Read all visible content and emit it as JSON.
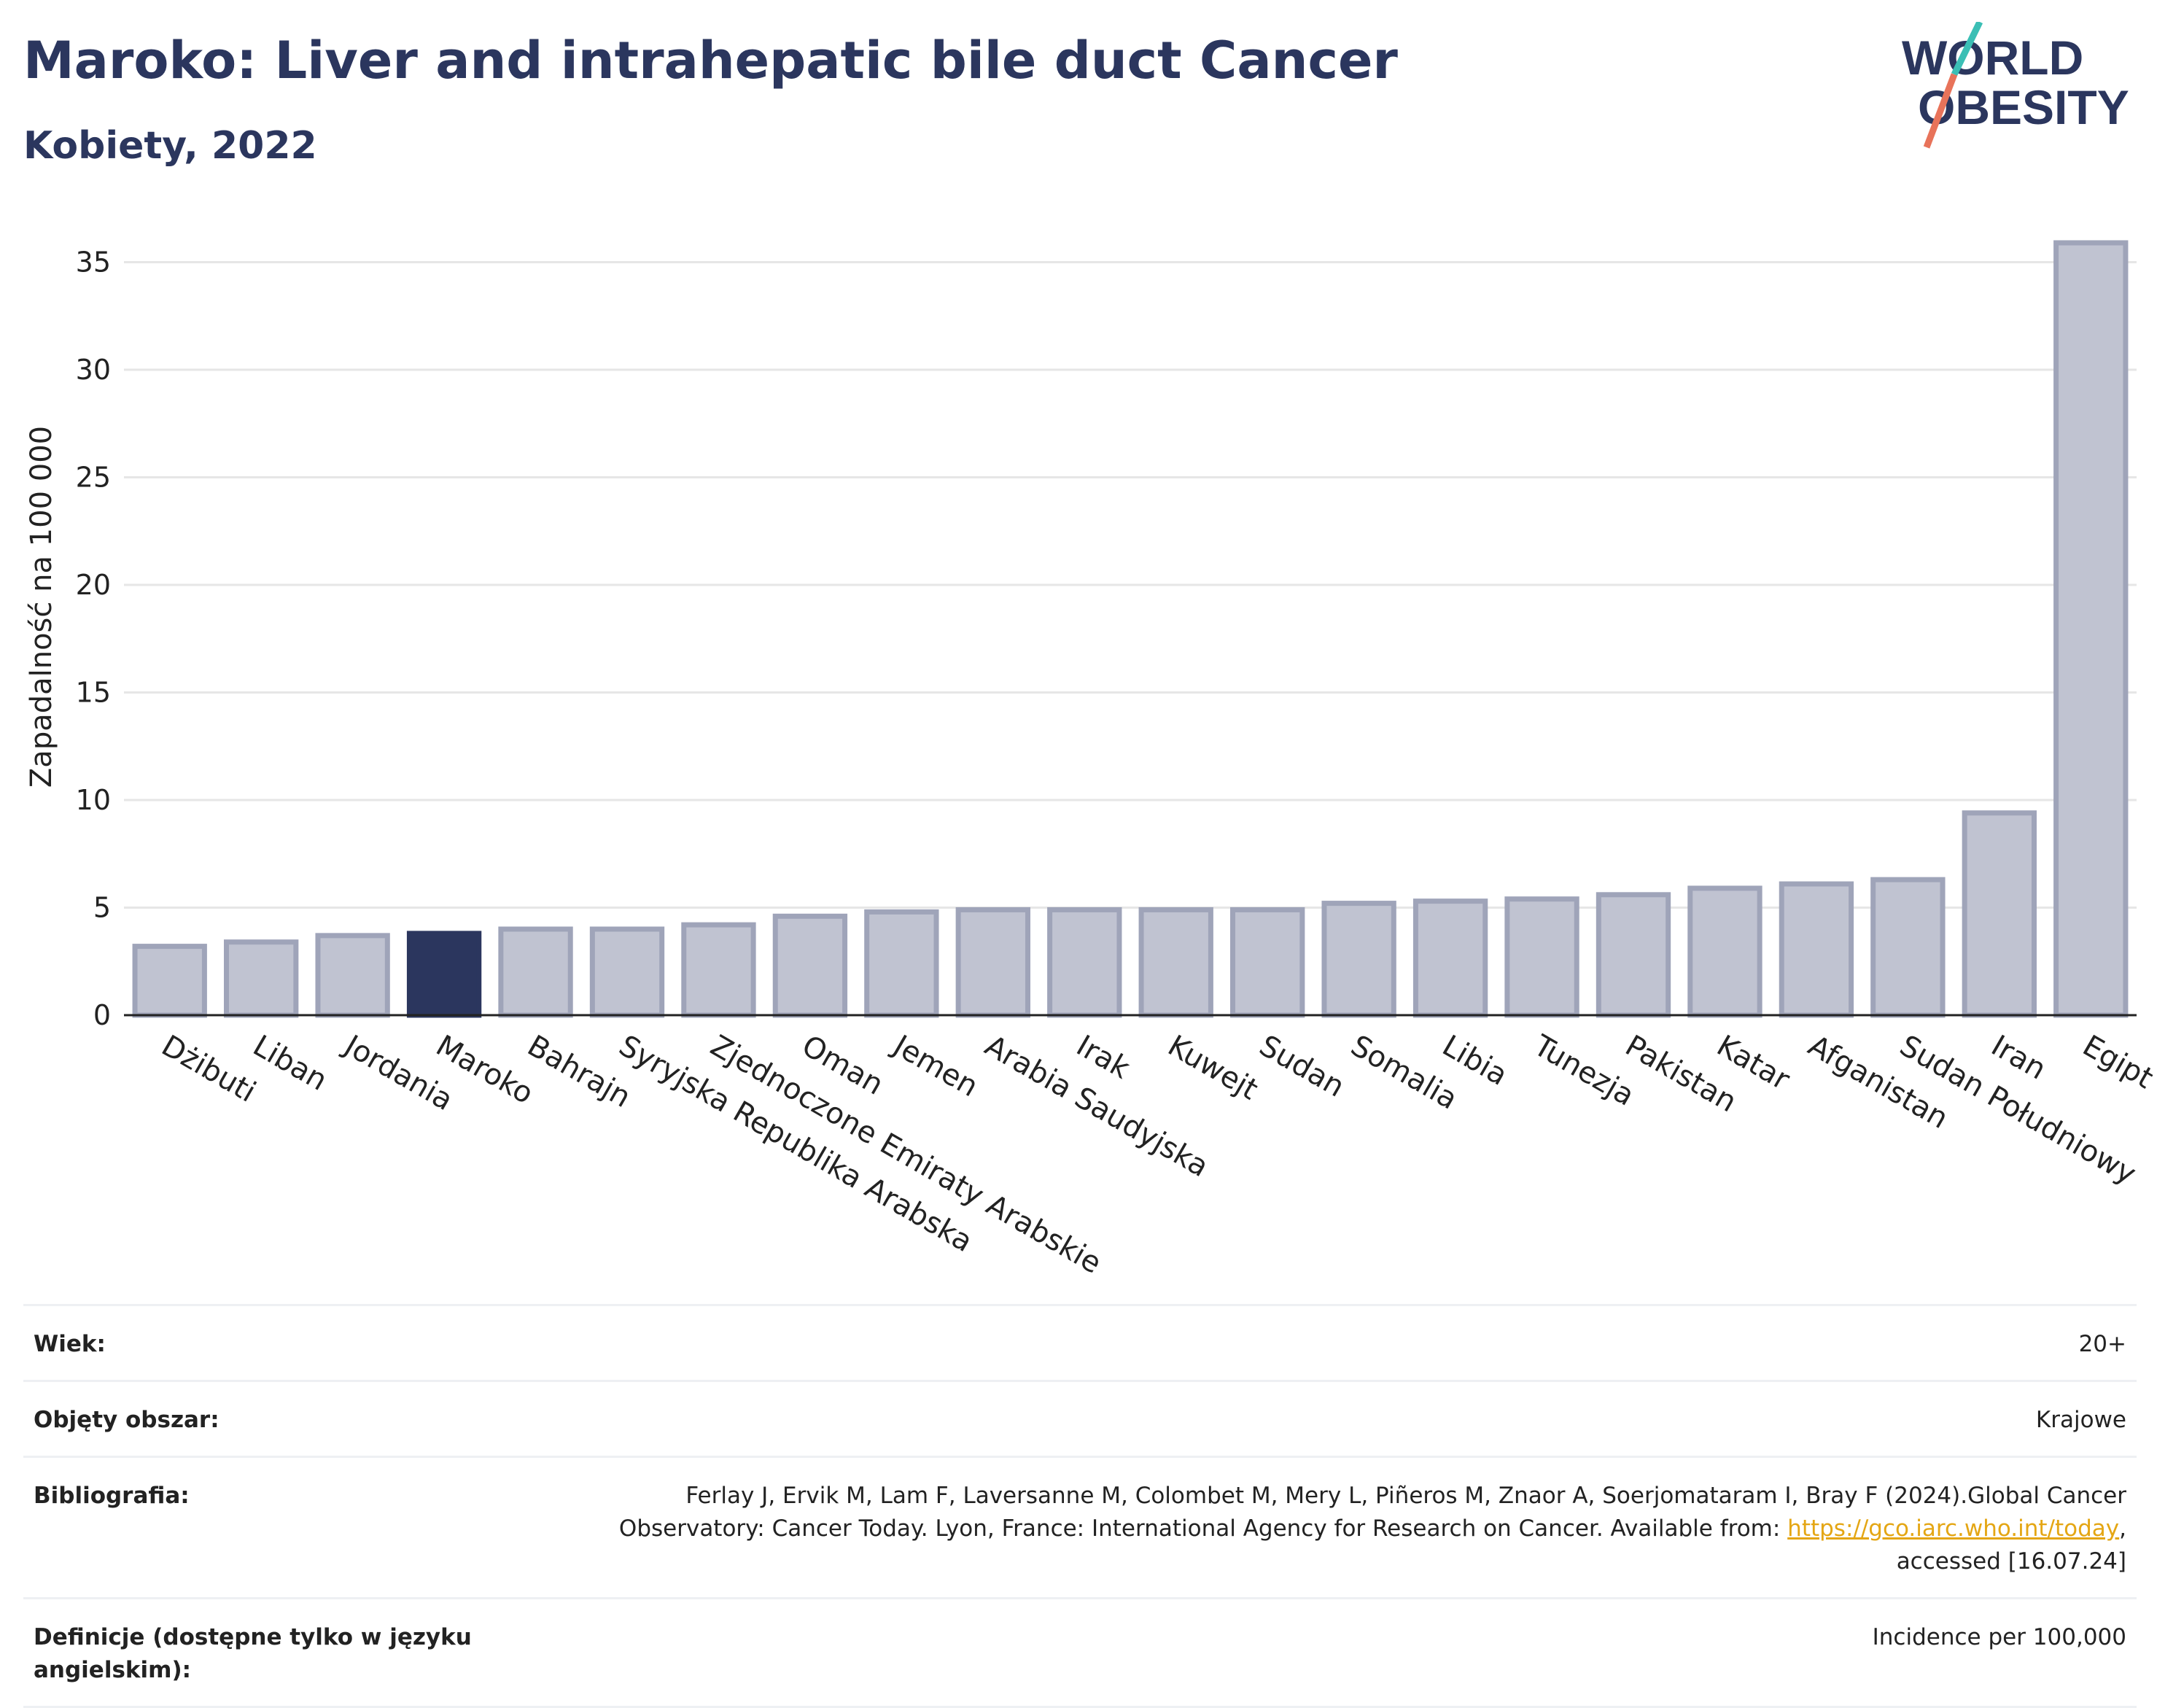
{
  "header": {
    "title": "Maroko: Liver and intrahepatic bile duct Cancer",
    "subtitle": "Kobiety, 2022"
  },
  "logo": {
    "line1": "WORLD",
    "line2": "OBESITY",
    "colors": {
      "text": "#2b365e",
      "slash_top": "#3bbfb5",
      "slash_bottom": "#e8735a"
    }
  },
  "colors": {
    "bar": "#c0c3d1",
    "bar_border": "#9fa4b9",
    "highlight": "#2b365e",
    "grid": "#e6e6e6",
    "axis": "#222222"
  },
  "chart_data": {
    "type": "bar",
    "ylabel": "Zapadalność na 100 000",
    "xlabel": "",
    "ylim": [
      0,
      37
    ],
    "yticks": [
      0,
      5,
      10,
      15,
      20,
      25,
      30,
      35
    ],
    "grid": true,
    "highlight": "Maroko",
    "categories": [
      "Dżibuti",
      "Liban",
      "Jordania",
      "Maroko",
      "Bahrajn",
      "Syryjska Republika Arabska",
      "Zjednoczone Emiraty Arabskie",
      "Oman",
      "Jemen",
      "Arabia Saudyjska",
      "Irak",
      "Kuwejt",
      "Sudan",
      "Somalia",
      "Libia",
      "Tunezja",
      "Pakistan",
      "Katar",
      "Afganistan",
      "Sudan Południowy",
      "Iran",
      "Egipt"
    ],
    "values": [
      3.2,
      3.4,
      3.7,
      3.8,
      4.0,
      4.0,
      4.2,
      4.6,
      4.8,
      4.9,
      4.9,
      4.9,
      4.9,
      5.2,
      5.3,
      5.4,
      5.6,
      5.9,
      6.1,
      6.3,
      9.4,
      35.9
    ]
  },
  "meta": [
    {
      "label": "Wiek:",
      "value": "20+"
    },
    {
      "label": "Objęty obszar:",
      "value": "Krajowe"
    },
    {
      "label": "Bibliografia:",
      "value_prefix": "Ferlay J, Ervik M, Lam F, Laversanne M, Colombet M, Mery L, Piñeros M, Znaor A, Soerjomataram I, Bray F (2024).Global Cancer Observatory: Cancer Today. Lyon, France: International Agency for Research on Cancer. Available from: ",
      "link": "https://gco.iarc.who.int/today",
      "value_suffix": ", accessed [16.07.24]"
    },
    {
      "label": "Definicje (dostępne tylko w języku angielskim):",
      "value": "Incidence per 100,000"
    }
  ]
}
